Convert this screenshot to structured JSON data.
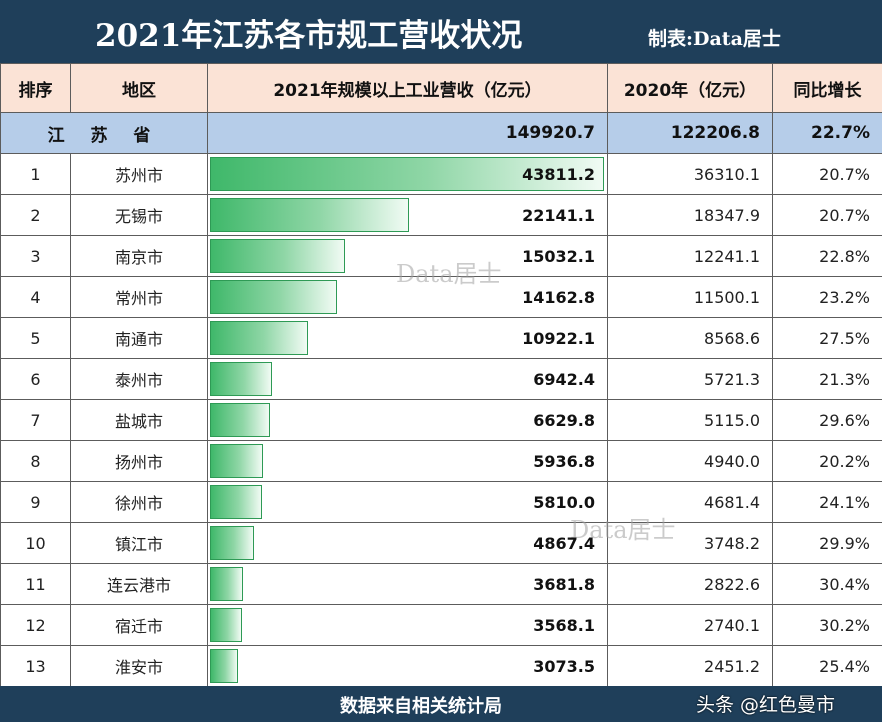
{
  "header": {
    "title": "2021年江苏各市规工营收状况",
    "maker": "制表:Data居士"
  },
  "columns": {
    "rank": "排序",
    "region": "地区",
    "revenue_2021": "2021年规模以上工业营收（亿元）",
    "revenue_2020": "2020年（亿元）",
    "growth": "同比增长"
  },
  "province": {
    "name": "江 苏 省",
    "revenue_2021": "149920.7",
    "revenue_2020": "122206.8",
    "growth": "22.7%"
  },
  "rows": [
    {
      "rank": "1",
      "region": "苏州市",
      "revenue_2021": "43811.2",
      "revenue_2020": "36310.1",
      "growth": "20.7%"
    },
    {
      "rank": "2",
      "region": "无锡市",
      "revenue_2021": "22141.1",
      "revenue_2020": "18347.9",
      "growth": "20.7%"
    },
    {
      "rank": "3",
      "region": "南京市",
      "revenue_2021": "15032.1",
      "revenue_2020": "12241.1",
      "growth": "22.8%"
    },
    {
      "rank": "4",
      "region": "常州市",
      "revenue_2021": "14162.8",
      "revenue_2020": "11500.1",
      "growth": "23.2%"
    },
    {
      "rank": "5",
      "region": "南通市",
      "revenue_2021": "10922.1",
      "revenue_2020": "8568.6",
      "growth": "27.5%"
    },
    {
      "rank": "6",
      "region": "泰州市",
      "revenue_2021": "6942.4",
      "revenue_2020": "5721.3",
      "growth": "21.3%"
    },
    {
      "rank": "7",
      "region": "盐城市",
      "revenue_2021": "6629.8",
      "revenue_2020": "5115.0",
      "growth": "29.6%"
    },
    {
      "rank": "8",
      "region": "扬州市",
      "revenue_2021": "5936.8",
      "revenue_2020": "4940.0",
      "growth": "20.2%"
    },
    {
      "rank": "9",
      "region": "徐州市",
      "revenue_2021": "5810.0",
      "revenue_2020": "4681.4",
      "growth": "24.1%"
    },
    {
      "rank": "10",
      "region": "镇江市",
      "revenue_2021": "4867.4",
      "revenue_2020": "3748.2",
      "growth": "29.9%"
    },
    {
      "rank": "11",
      "region": "连云港市",
      "revenue_2021": "3681.8",
      "revenue_2020": "2822.6",
      "growth": "30.4%"
    },
    {
      "rank": "12",
      "region": "宿迁市",
      "revenue_2021": "3568.1",
      "revenue_2020": "2740.1",
      "growth": "30.2%"
    },
    {
      "rank": "13",
      "region": "淮安市",
      "revenue_2021": "3073.5",
      "revenue_2020": "2451.2",
      "growth": "25.4%"
    }
  ],
  "watermarks": [
    "Data居士",
    "Data居士"
  ],
  "footer": {
    "source": "数据来自相关统计局",
    "credit": "头条 @红色曼市"
  },
  "colors": {
    "title_bg": "#1f3f5a",
    "header_bg": "#fbe3d6",
    "province_bg": "#b6cde9",
    "bar_start": "#3fb86a",
    "bar_border": "#2e9a55"
  },
  "chart_data": {
    "type": "table",
    "title": "2021年江苏各市规工营收状况",
    "columns": [
      "排序",
      "地区",
      "2021年规模以上工业营收（亿元）",
      "2020年（亿元）",
      "同比增长"
    ],
    "categories": [
      "苏州市",
      "无锡市",
      "南京市",
      "常州市",
      "南通市",
      "泰州市",
      "盐城市",
      "扬州市",
      "徐州市",
      "镇江市",
      "连云港市",
      "宿迁市",
      "淮安市"
    ],
    "series": [
      {
        "name": "2021年规模以上工业营收（亿元）",
        "values": [
          43811.2,
          22141.1,
          15032.1,
          14162.8,
          10922.1,
          6942.4,
          6629.8,
          5936.8,
          5810.0,
          4867.4,
          3681.8,
          3568.1,
          3073.5
        ]
      },
      {
        "name": "2020年（亿元）",
        "values": [
          36310.1,
          18347.9,
          12241.1,
          11500.1,
          8568.6,
          5721.3,
          5115.0,
          4940.0,
          4681.4,
          3748.2,
          2822.6,
          2740.1,
          2451.2
        ]
      },
      {
        "name": "同比增长",
        "values": [
          20.7,
          20.7,
          22.8,
          23.2,
          27.5,
          21.3,
          29.6,
          20.2,
          24.1,
          29.9,
          30.4,
          30.2,
          25.4
        ]
      }
    ],
    "totals": {
      "江苏省": {
        "2021": 149920.7,
        "2020": 122206.8,
        "growth": 22.7
      }
    },
    "bar_series": "2021年规模以上工业营收（亿元）",
    "bar_xlim": [
      0,
      44000
    ]
  }
}
